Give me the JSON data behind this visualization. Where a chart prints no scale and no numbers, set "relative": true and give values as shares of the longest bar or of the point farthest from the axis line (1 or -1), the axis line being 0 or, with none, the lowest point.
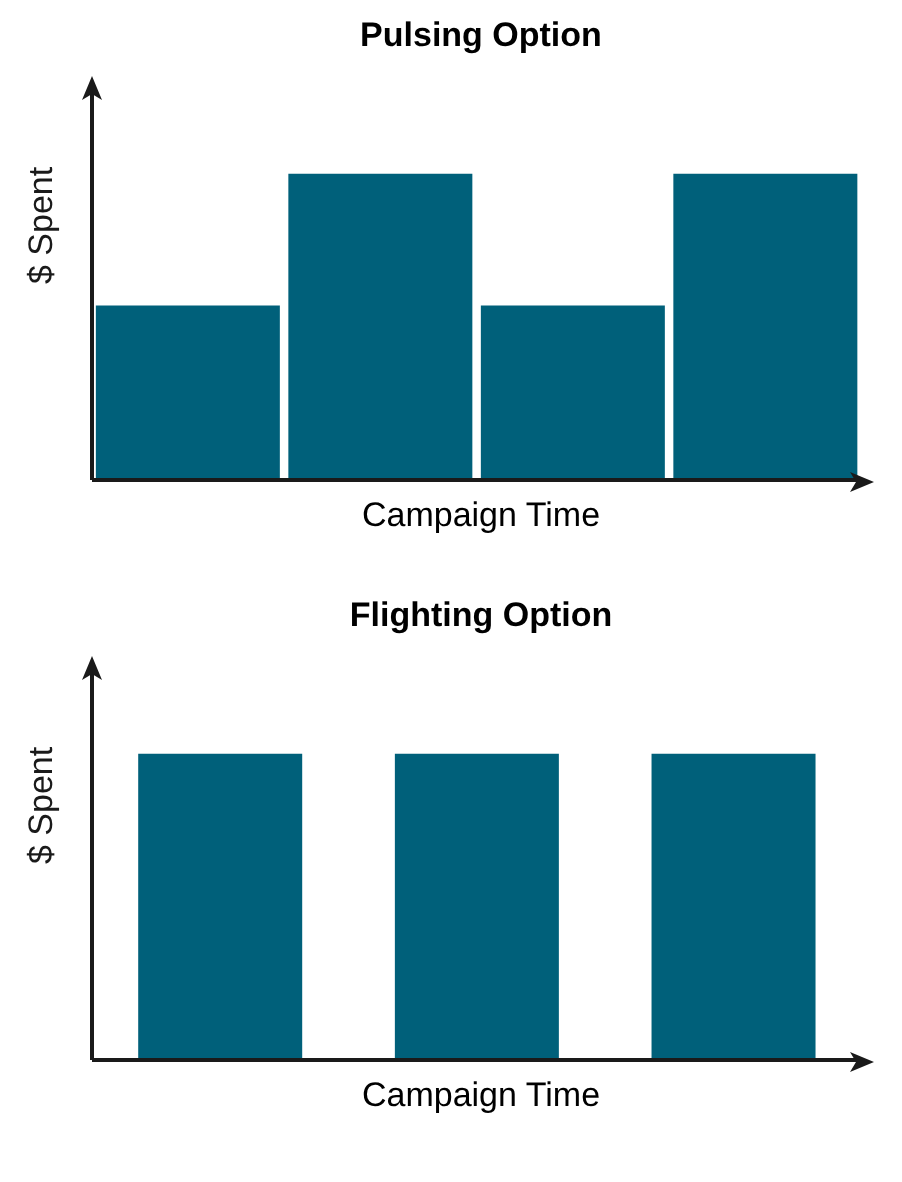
{
  "chart_data": [
    {
      "type": "bar",
      "title": "Pulsing Option",
      "xlabel": "Campaign Time",
      "ylabel": "$ Spent",
      "categories": [
        null,
        null,
        null,
        null
      ],
      "values": [
        0.57,
        1,
        0.57,
        1
      ],
      "color": "#00607a",
      "relative": true
    },
    {
      "type": "bar",
      "title": "Flighting Option",
      "xlabel": "Campaign Time",
      "ylabel": "$ Spent",
      "categories": [
        null,
        null,
        null
      ],
      "values": [
        1,
        1,
        1
      ],
      "color": "#00607a",
      "relative": true
    }
  ]
}
